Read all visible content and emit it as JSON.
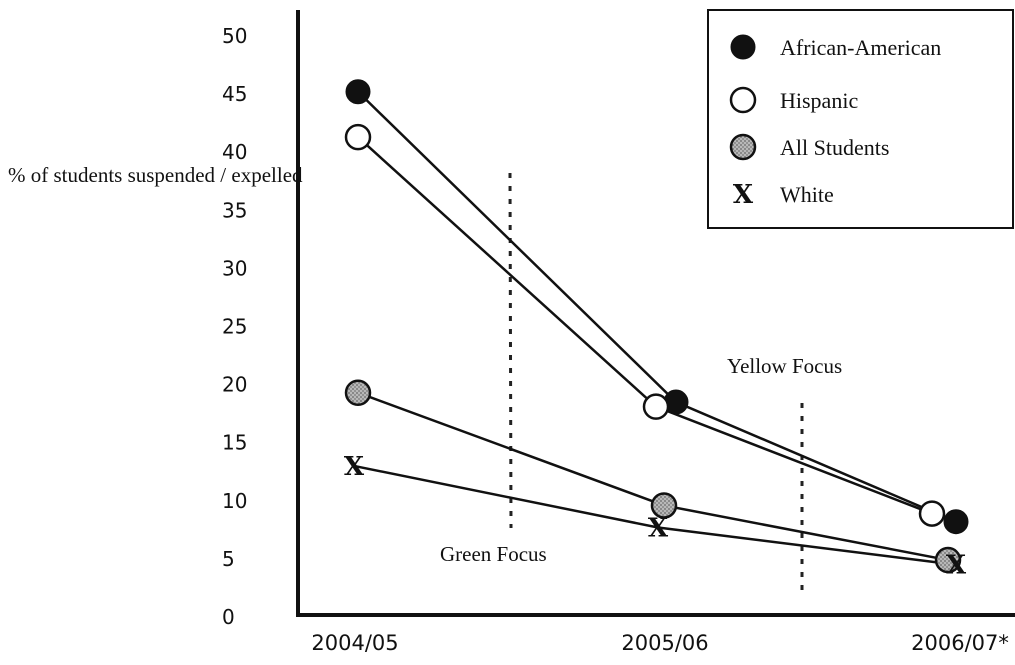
{
  "chart_data": {
    "type": "line",
    "ylabel": "% of students suspended / expelled",
    "ylim": [
      0,
      50
    ],
    "yticks": [
      "0",
      "5",
      "10",
      "15",
      "20",
      "25",
      "30",
      "35",
      "40",
      "45",
      "50"
    ],
    "categories": [
      "2004/05",
      "2005/06",
      "2006/07*"
    ],
    "series": [
      {
        "name": "African-American",
        "marker": "filled",
        "values": [
          45.2,
          18.5,
          8.2
        ]
      },
      {
        "name": "Hispanic",
        "marker": "open",
        "values": [
          41.3,
          18.1,
          8.9
        ]
      },
      {
        "name": "All Students",
        "marker": "gray",
        "values": [
          19.3,
          9.6,
          4.9
        ]
      },
      {
        "name": "White",
        "marker": "x",
        "values": [
          13.0,
          7.7,
          4.5
        ]
      }
    ],
    "annotations": [
      {
        "label": "Green Focus"
      },
      {
        "label": "Yellow Focus"
      }
    ],
    "legend_position": "top-right",
    "grid": false,
    "colors": {
      "filled": "#111111",
      "open": "#ffffff",
      "gray": "#9a9a9a"
    }
  }
}
